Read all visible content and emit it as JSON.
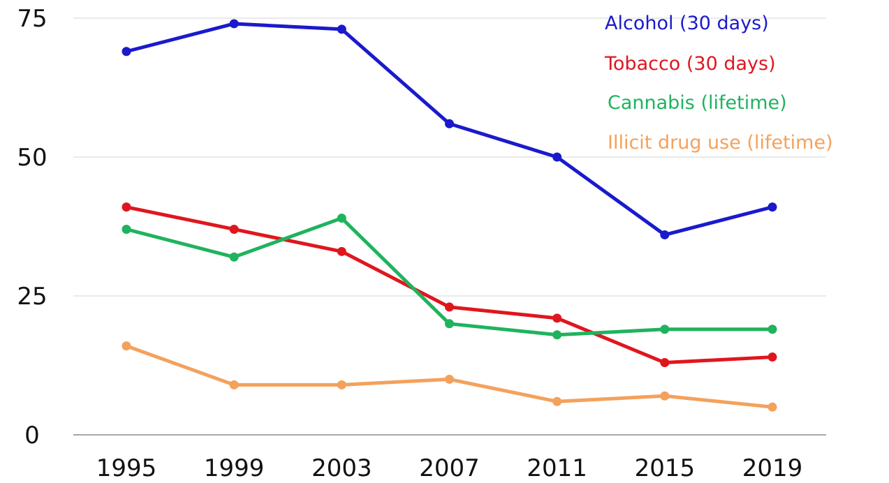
{
  "chart_data": {
    "type": "line",
    "title": "",
    "xlabel": "",
    "ylabel": "",
    "x": [
      "1995",
      "1999",
      "2003",
      "2007",
      "2011",
      "2015",
      "2019"
    ],
    "ylim": [
      0,
      75
    ],
    "yticks": [
      0,
      25,
      50,
      75
    ],
    "grid": "horizontal",
    "legend_position": "top-right",
    "series": [
      {
        "name": "Alcohol (30 days)",
        "color": "#1a1acc",
        "values": [
          69,
          74,
          73,
          56,
          50,
          36,
          41
        ]
      },
      {
        "name": "Tobacco (30 days)",
        "color": "#e0161e",
        "values": [
          41,
          37,
          33,
          23,
          21,
          13,
          14
        ]
      },
      {
        "name": "Cannabis (lifetime)",
        "color": "#1fb35e",
        "values": [
          37,
          32,
          39,
          20,
          18,
          19,
          19
        ]
      },
      {
        "name": "Illicit drug use (lifetime)",
        "color": "#f4a15c",
        "values": [
          16,
          9,
          9,
          10,
          6,
          7,
          5
        ]
      }
    ]
  }
}
